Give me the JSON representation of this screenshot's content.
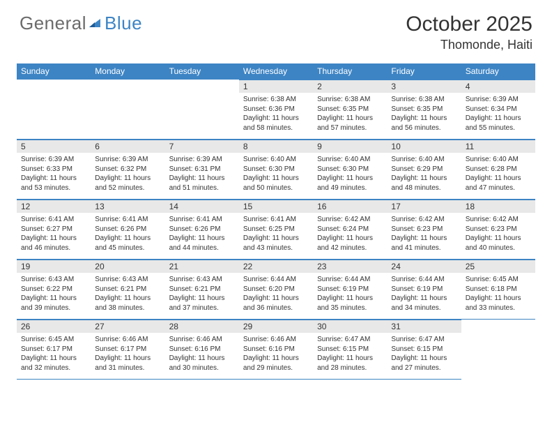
{
  "logo": {
    "part1": "General",
    "part2": "Blue"
  },
  "title": "October 2025",
  "location": "Thomonde, Haiti",
  "colors": {
    "accent": "#3d84c4",
    "daynum_bg": "#e8e8e8",
    "text": "#333333",
    "logo_gray": "#6b6b6b",
    "logo_blue": "#3d84c4",
    "background": "#ffffff"
  },
  "typography": {
    "title_fontsize_pt": 22,
    "location_fontsize_pt": 13,
    "header_fontsize_pt": 9,
    "daynum_fontsize_pt": 9,
    "cell_fontsize_pt": 7.5
  },
  "weekdays": [
    "Sunday",
    "Monday",
    "Tuesday",
    "Wednesday",
    "Thursday",
    "Friday",
    "Saturday"
  ],
  "grid": {
    "rows": 5,
    "cols": 7,
    "first_weekday_index": 3,
    "days_in_month": 31
  },
  "days": {
    "1": {
      "sunrise": "6:38 AM",
      "sunset": "6:36 PM",
      "daylight": "11 hours and 58 minutes."
    },
    "2": {
      "sunrise": "6:38 AM",
      "sunset": "6:35 PM",
      "daylight": "11 hours and 57 minutes."
    },
    "3": {
      "sunrise": "6:38 AM",
      "sunset": "6:35 PM",
      "daylight": "11 hours and 56 minutes."
    },
    "4": {
      "sunrise": "6:39 AM",
      "sunset": "6:34 PM",
      "daylight": "11 hours and 55 minutes."
    },
    "5": {
      "sunrise": "6:39 AM",
      "sunset": "6:33 PM",
      "daylight": "11 hours and 53 minutes."
    },
    "6": {
      "sunrise": "6:39 AM",
      "sunset": "6:32 PM",
      "daylight": "11 hours and 52 minutes."
    },
    "7": {
      "sunrise": "6:39 AM",
      "sunset": "6:31 PM",
      "daylight": "11 hours and 51 minutes."
    },
    "8": {
      "sunrise": "6:40 AM",
      "sunset": "6:30 PM",
      "daylight": "11 hours and 50 minutes."
    },
    "9": {
      "sunrise": "6:40 AM",
      "sunset": "6:30 PM",
      "daylight": "11 hours and 49 minutes."
    },
    "10": {
      "sunrise": "6:40 AM",
      "sunset": "6:29 PM",
      "daylight": "11 hours and 48 minutes."
    },
    "11": {
      "sunrise": "6:40 AM",
      "sunset": "6:28 PM",
      "daylight": "11 hours and 47 minutes."
    },
    "12": {
      "sunrise": "6:41 AM",
      "sunset": "6:27 PM",
      "daylight": "11 hours and 46 minutes."
    },
    "13": {
      "sunrise": "6:41 AM",
      "sunset": "6:26 PM",
      "daylight": "11 hours and 45 minutes."
    },
    "14": {
      "sunrise": "6:41 AM",
      "sunset": "6:26 PM",
      "daylight": "11 hours and 44 minutes."
    },
    "15": {
      "sunrise": "6:41 AM",
      "sunset": "6:25 PM",
      "daylight": "11 hours and 43 minutes."
    },
    "16": {
      "sunrise": "6:42 AM",
      "sunset": "6:24 PM",
      "daylight": "11 hours and 42 minutes."
    },
    "17": {
      "sunrise": "6:42 AM",
      "sunset": "6:23 PM",
      "daylight": "11 hours and 41 minutes."
    },
    "18": {
      "sunrise": "6:42 AM",
      "sunset": "6:23 PM",
      "daylight": "11 hours and 40 minutes."
    },
    "19": {
      "sunrise": "6:43 AM",
      "sunset": "6:22 PM",
      "daylight": "11 hours and 39 minutes."
    },
    "20": {
      "sunrise": "6:43 AM",
      "sunset": "6:21 PM",
      "daylight": "11 hours and 38 minutes."
    },
    "21": {
      "sunrise": "6:43 AM",
      "sunset": "6:21 PM",
      "daylight": "11 hours and 37 minutes."
    },
    "22": {
      "sunrise": "6:44 AM",
      "sunset": "6:20 PM",
      "daylight": "11 hours and 36 minutes."
    },
    "23": {
      "sunrise": "6:44 AM",
      "sunset": "6:19 PM",
      "daylight": "11 hours and 35 minutes."
    },
    "24": {
      "sunrise": "6:44 AM",
      "sunset": "6:19 PM",
      "daylight": "11 hours and 34 minutes."
    },
    "25": {
      "sunrise": "6:45 AM",
      "sunset": "6:18 PM",
      "daylight": "11 hours and 33 minutes."
    },
    "26": {
      "sunrise": "6:45 AM",
      "sunset": "6:17 PM",
      "daylight": "11 hours and 32 minutes."
    },
    "27": {
      "sunrise": "6:46 AM",
      "sunset": "6:17 PM",
      "daylight": "11 hours and 31 minutes."
    },
    "28": {
      "sunrise": "6:46 AM",
      "sunset": "6:16 PM",
      "daylight": "11 hours and 30 minutes."
    },
    "29": {
      "sunrise": "6:46 AM",
      "sunset": "6:16 PM",
      "daylight": "11 hours and 29 minutes."
    },
    "30": {
      "sunrise": "6:47 AM",
      "sunset": "6:15 PM",
      "daylight": "11 hours and 28 minutes."
    },
    "31": {
      "sunrise": "6:47 AM",
      "sunset": "6:15 PM",
      "daylight": "11 hours and 27 minutes."
    }
  },
  "labels": {
    "sunrise": "Sunrise:",
    "sunset": "Sunset:",
    "daylight": "Daylight:"
  }
}
